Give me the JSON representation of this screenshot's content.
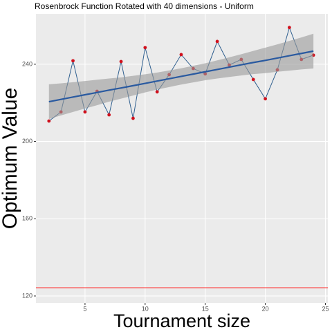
{
  "chart_data": {
    "type": "line",
    "title": "Rosenbrock Function Rotated with 40 dimensions -  Uniform",
    "x_label": "Tournament size",
    "y_label": "Optimum Value",
    "x": [
      2,
      3,
      4,
      5,
      6,
      7,
      8,
      9,
      10,
      11,
      12,
      13,
      14,
      15,
      16,
      17,
      18,
      19,
      20,
      21,
      22,
      23,
      24
    ],
    "series": [
      {
        "color": "#2f5f8f",
        "point_color": "#d0101c",
        "values": [
          210.6,
          215.3,
          241.8,
          215.3,
          226,
          213.8,
          241.4,
          212,
          248.6,
          225.7,
          234.6,
          245,
          237.8,
          235,
          251.8,
          239.6,
          242.5,
          232.1,
          222.1,
          237.1,
          259,
          242.5,
          244.7
        ]
      }
    ],
    "trend": {
      "color": "#2a5aa0",
      "values": [
        220.6,
        221.8,
        223.0,
        224.2,
        225.4,
        226.6,
        227.7,
        228.9,
        230.1,
        231.3,
        232.5,
        233.7,
        234.9,
        236.1,
        237.3,
        238.5,
        239.7,
        240.9,
        242.0,
        243.2,
        244.4,
        245.6,
        246.8
      ],
      "ci_lower": [
        211.6,
        213.5,
        215.3,
        217.1,
        218.8,
        220.6,
        222.2,
        223.8,
        225.4,
        226.9,
        228.2,
        229.5,
        230.6,
        231.7,
        232.6,
        233.4,
        234.2,
        234.9,
        235.4,
        236.1,
        236.7,
        237.3,
        237.8
      ],
      "ci_upper": [
        229.6,
        230.1,
        230.7,
        231.3,
        232.0,
        232.6,
        233.2,
        234.0,
        234.8,
        235.7,
        236.8,
        237.9,
        239.2,
        240.5,
        242.0,
        243.6,
        245.2,
        246.9,
        248.6,
        250.3,
        252.1,
        253.9,
        255.8
      ]
    },
    "hline": 124.3,
    "hline_color": "#ff2a2a",
    "xlim": [
      0.92,
      25.2
    ],
    "ylim": [
      116.4,
      266.1
    ],
    "xticks": [
      5,
      10,
      15,
      20,
      25
    ],
    "yticks": [
      120,
      160,
      200,
      240
    ],
    "grid": true
  }
}
